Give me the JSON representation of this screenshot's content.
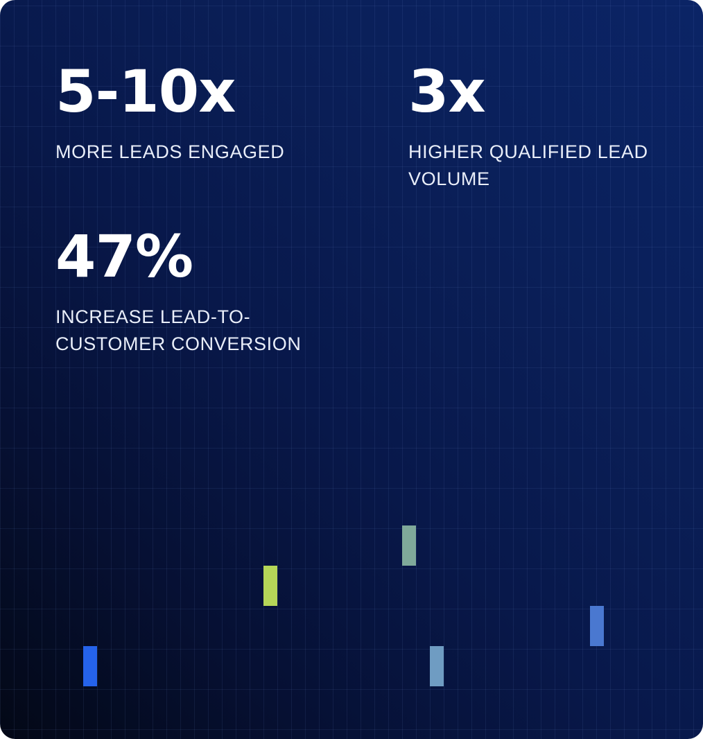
{
  "stats": [
    {
      "value": "5-10x",
      "label": "MORE LEADS ENGAGED"
    },
    {
      "value": "3x",
      "label": "HIGHER QUALIFIED LEAD VOLUME"
    },
    {
      "value": "47%",
      "label": "INCREASE LEAD-TO-CUSTOMER CONVERSION"
    }
  ],
  "colors": {
    "background_dark": "#030816",
    "background_navy": "#0b2466",
    "accent_blue": "#2563eb",
    "accent_lime": "#b5d658",
    "accent_sage": "#7fa99a",
    "accent_steel": "#6f9cc2",
    "accent_periwinkle": "#4a78d0"
  }
}
